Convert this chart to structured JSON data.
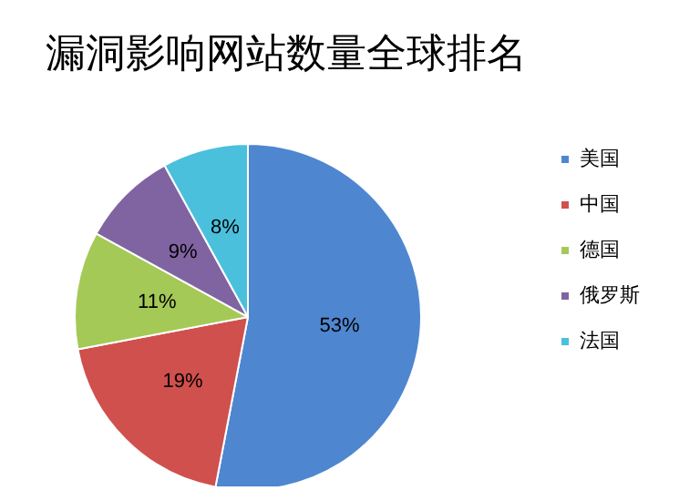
{
  "chart_data": {
    "type": "pie",
    "title": "漏洞影响网站数量全球排名",
    "categories": [
      "美国",
      "中国",
      "德国",
      "俄罗斯",
      "法国"
    ],
    "values": [
      53,
      19,
      11,
      9,
      8
    ],
    "colors": [
      "#4f86d0",
      "#d0504d",
      "#a5c957",
      "#8064a2",
      "#4bc0dd"
    ],
    "value_labels": [
      "53%",
      "19%",
      "11%",
      "9%",
      "8%"
    ],
    "legend": "right"
  }
}
